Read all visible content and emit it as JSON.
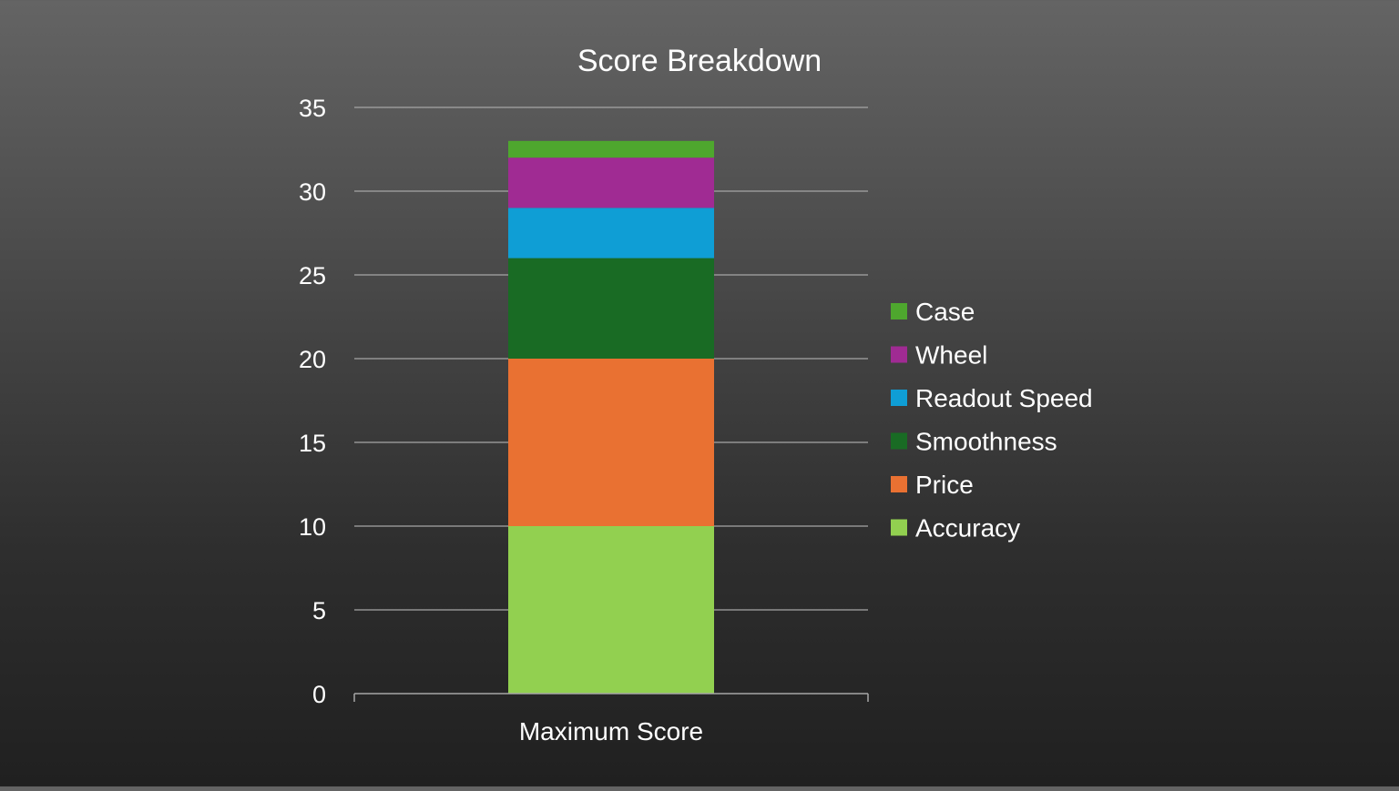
{
  "chart_data": {
    "type": "bar",
    "stacked": true,
    "title": "Score Breakdown",
    "xlabel": "",
    "ylabel": "",
    "categories": [
      "Maximum Score"
    ],
    "ylim": [
      0,
      35
    ],
    "yticks": [
      0,
      5,
      10,
      15,
      20,
      25,
      30,
      35
    ],
    "grid": true,
    "legend_position": "right",
    "series": [
      {
        "name": "Accuracy",
        "values": [
          10
        ],
        "color": "#92d050"
      },
      {
        "name": "Price",
        "values": [
          10
        ],
        "color": "#e97132"
      },
      {
        "name": "Smoothness",
        "values": [
          6
        ],
        "color": "#196b24"
      },
      {
        "name": "Readout Speed",
        "values": [
          3
        ],
        "color": "#0f9ed5"
      },
      {
        "name": "Wheel",
        "values": [
          3
        ],
        "color": "#a02b93"
      },
      {
        "name": "Case",
        "values": [
          1
        ],
        "color": "#4ea72e"
      }
    ]
  }
}
